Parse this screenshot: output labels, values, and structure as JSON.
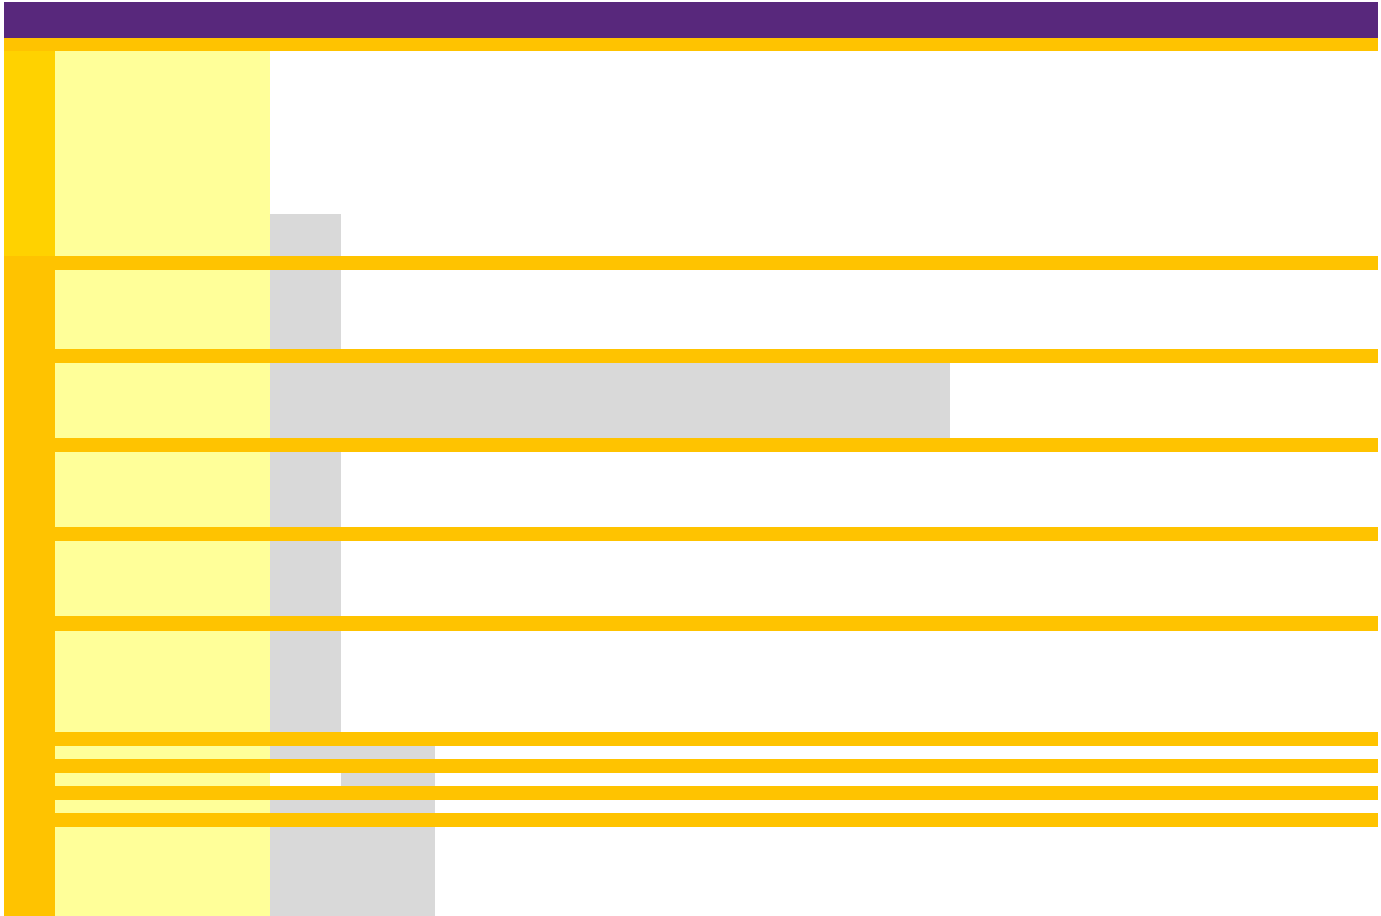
{
  "colors": {
    "header": "#58287c",
    "section_gold": "#ffd200",
    "section_amber": "#ffc300",
    "band": "#ffc300",
    "label_fill": "#ffff99",
    "gray_fill": "#d9d9d9",
    "background": "#ffffff"
  },
  "layout_diagram": {
    "header": {},
    "sections": [
      {
        "id": "top",
        "accent": "section_gold"
      },
      {
        "id": "bottom",
        "accent": "section_amber"
      }
    ],
    "rows": [
      {
        "id": "row-1",
        "gray_fill_extent": "narrow"
      },
      {
        "id": "row-2",
        "gray_fill_extent": "narrow"
      },
      {
        "id": "row-3",
        "gray_fill_extent": "wide"
      },
      {
        "id": "row-4",
        "gray_fill_extent": "narrow"
      },
      {
        "id": "row-5",
        "gray_fill_extent": "narrow"
      },
      {
        "id": "row-6",
        "gray_fill_extent": "narrow"
      },
      {
        "id": "row-7",
        "gray_fill_extent": "medium"
      },
      {
        "id": "row-8",
        "gray_fill_extent": "medium"
      },
      {
        "id": "row-9",
        "gray_fill_extent": "medium"
      },
      {
        "id": "row-10",
        "gray_fill_extent": "medium"
      }
    ]
  }
}
